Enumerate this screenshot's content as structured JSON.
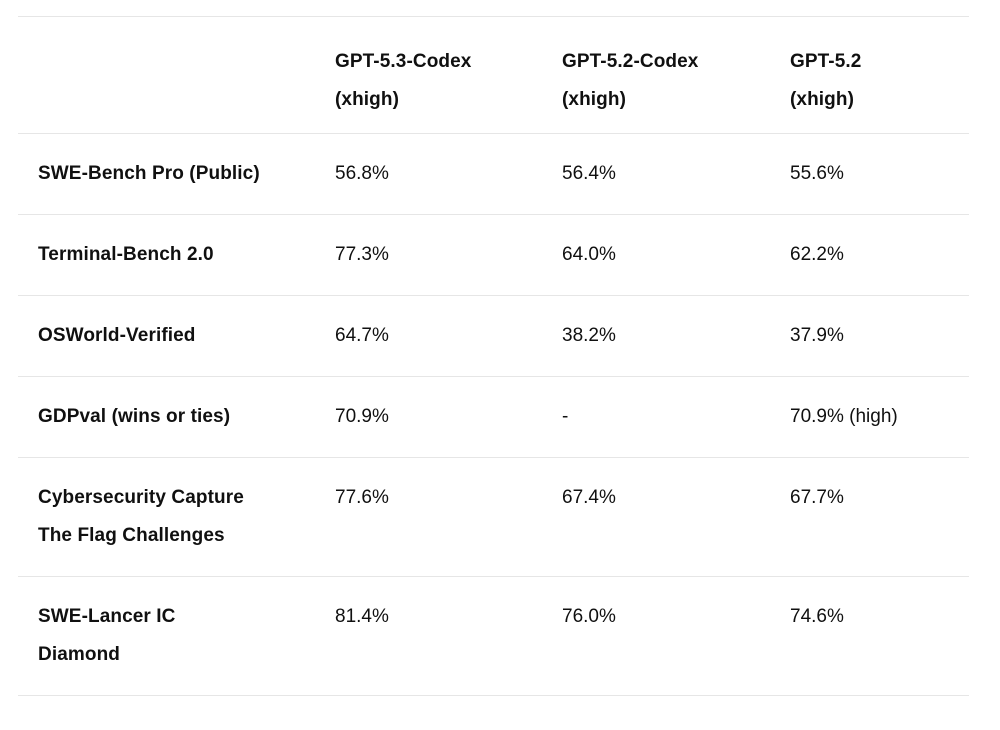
{
  "page": {
    "background_color": "#ffffff",
    "text_color": "#101010",
    "divider_color": "#e6e6e6"
  },
  "table": {
    "header": {
      "cols": [
        {
          "line1": "GPT-5.3-Codex",
          "line2": "(xhigh)"
        },
        {
          "line1": "GPT-5.2-Codex",
          "line2": "(xhigh)"
        },
        {
          "line1": "GPT-5.2",
          "line2": "(xhigh)"
        }
      ]
    },
    "rows": [
      {
        "label_lines": [
          "SWE-Bench Pro (Public)"
        ],
        "values": [
          "56.8%",
          "56.4%",
          "55.6%"
        ]
      },
      {
        "label_lines": [
          "Terminal-Bench 2.0"
        ],
        "values": [
          "77.3%",
          "64.0%",
          "62.2%"
        ]
      },
      {
        "label_lines": [
          "OSWorld-Verified"
        ],
        "values": [
          "64.7%",
          "38.2%",
          "37.9%"
        ]
      },
      {
        "label_lines": [
          "GDPval (wins or ties)"
        ],
        "values": [
          "70.9%",
          "-",
          "70.9% (high)"
        ]
      },
      {
        "label_lines": [
          "Cybersecurity Capture",
          "The Flag Challenges"
        ],
        "values": [
          "77.6%",
          "67.4%",
          "67.7%"
        ]
      },
      {
        "label_lines": [
          "SWE-Lancer IC",
          "Diamond"
        ],
        "values": [
          "81.4%",
          "76.0%",
          "74.6%"
        ]
      }
    ]
  },
  "chart_data": {
    "type": "table",
    "columns": [
      "",
      "GPT-5.3-Codex (xhigh)",
      "GPT-5.2-Codex (xhigh)",
      "GPT-5.2 (xhigh)"
    ],
    "rows": [
      [
        "SWE-Bench Pro (Public)",
        "56.8%",
        "56.4%",
        "55.6%"
      ],
      [
        "Terminal-Bench 2.0",
        "77.3%",
        "64.0%",
        "62.2%"
      ],
      [
        "OSWorld-Verified",
        "64.7%",
        "38.2%",
        "37.9%"
      ],
      [
        "GDPval (wins or ties)",
        "70.9%",
        "-",
        "70.9% (high)"
      ],
      [
        "Cybersecurity Capture The Flag Challenges",
        "77.6%",
        "67.4%",
        "67.7%"
      ],
      [
        "SWE-Lancer IC Diamond",
        "81.4%",
        "76.0%",
        "74.6%"
      ]
    ],
    "numeric_values_pct": {
      "GPT-5.3-Codex (xhigh)": [
        56.8,
        77.3,
        64.7,
        70.9,
        77.6,
        81.4
      ],
      "GPT-5.2-Codex (xhigh)": [
        56.4,
        64.0,
        38.2,
        null,
        67.4,
        76.0
      ],
      "GPT-5.2 (xhigh)": [
        55.6,
        62.2,
        37.9,
        70.9,
        67.7,
        74.6
      ]
    },
    "title": "",
    "notes": "GDPval value for GPT-5.2 (xhigh) is annotated '(high)'; GPT-5.2-Codex GDPval cell shows a dash."
  }
}
